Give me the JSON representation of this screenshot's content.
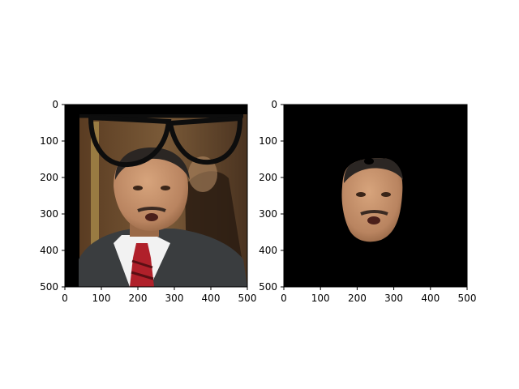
{
  "chart_data": [
    {
      "type": "image",
      "title": "",
      "xlabel": "",
      "ylabel": "",
      "xlim": [
        0,
        500
      ],
      "ylim": [
        500,
        0
      ],
      "xticks": [
        "0",
        "100",
        "200",
        "300",
        "400",
        "500"
      ],
      "yticks": [
        "0",
        "100",
        "200",
        "300",
        "400",
        "500"
      ],
      "content": "portrait photograph of a man in a suit with red striped tie, a pair of black glasses overlaid near the top of the image",
      "background_color": "#000000"
    },
    {
      "type": "image",
      "title": "",
      "xlabel": "",
      "ylabel": "",
      "xlim": [
        0,
        500
      ],
      "ylim": [
        500,
        0
      ],
      "xticks": [
        "0",
        "100",
        "200",
        "300",
        "400",
        "500"
      ],
      "yticks": [
        "0",
        "100",
        "200",
        "300",
        "400",
        "500"
      ],
      "content": "segmented face region of the same man on a black background",
      "background_color": "#000000"
    }
  ],
  "colors": {
    "skin": "#c9946e",
    "skin_shadow": "#9a6a48",
    "suit": "#3a3d3f",
    "shirt": "#f2f2f2",
    "tie": "#b0202a",
    "backdrop": "#6b4a2e",
    "glasses": "#0d0d0d"
  }
}
